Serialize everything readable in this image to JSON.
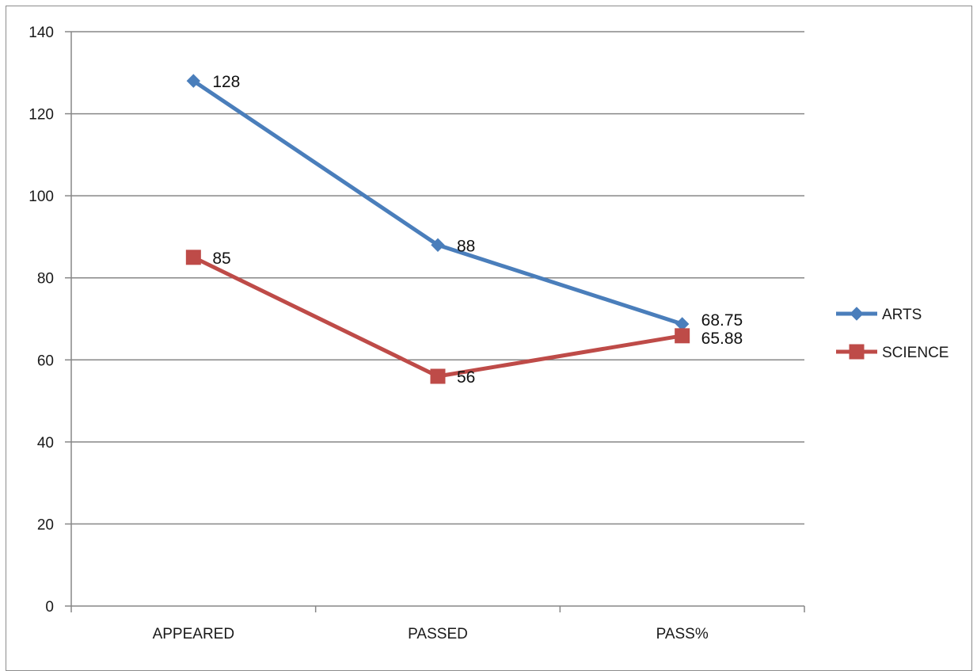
{
  "chart_data": {
    "type": "line",
    "categories": [
      "APPEARED",
      "PASSED",
      "PASS%"
    ],
    "series": [
      {
        "name": "ARTS",
        "values": [
          128,
          88,
          68.75
        ],
        "color": "#4a7ebb",
        "marker": "diamond"
      },
      {
        "name": "SCIENCE",
        "values": [
          85,
          56,
          65.88
        ],
        "color": "#be4b48",
        "marker": "square"
      }
    ],
    "data_labels": {
      "ARTS": [
        "128",
        "88",
        "68.75"
      ],
      "SCIENCE": [
        "85",
        "56",
        "65.88"
      ]
    },
    "y_ticks": [
      "0",
      "20",
      "40",
      "60",
      "80",
      "100",
      "120",
      "140"
    ],
    "ylim": [
      0,
      140
    ],
    "grid": true,
    "legend_position": "right",
    "title": "",
    "xlabel": "",
    "ylabel": ""
  }
}
